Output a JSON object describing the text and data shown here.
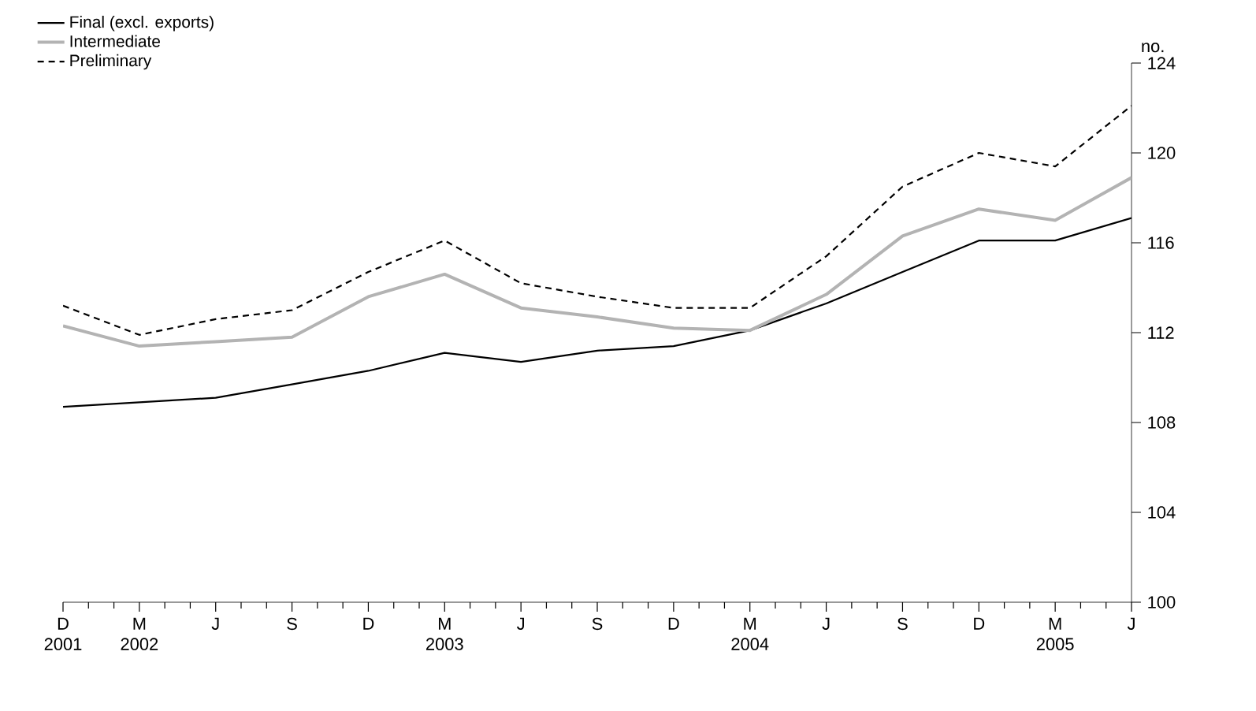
{
  "chart_data": {
    "type": "line",
    "ylabel": "no.",
    "categories": [
      "D 2001",
      "M 2002",
      "J",
      "S",
      "D",
      "M 2003",
      "J",
      "S",
      "D",
      "M 2004",
      "J",
      "S",
      "D",
      "M 2005",
      "J"
    ],
    "ylim": [
      100,
      124
    ],
    "yticks": [
      100,
      104,
      108,
      112,
      116,
      120,
      124
    ],
    "legend": "top left",
    "grid": false,
    "series": [
      {
        "name": "Final (excl. exports)",
        "color": "#000000",
        "line_style": "solid",
        "values": [
          108.7,
          108.9,
          109.1,
          109.7,
          110.3,
          111.1,
          110.7,
          111.2,
          111.4,
          112.1,
          113.3,
          114.7,
          116.1,
          116.1,
          117.1
        ]
      },
      {
        "name": "Intermediate",
        "color": "#b3b3b3",
        "line_style": "solid",
        "values": [
          112.3,
          111.4,
          111.6,
          111.8,
          113.6,
          114.6,
          113.1,
          112.7,
          112.2,
          112.1,
          113.7,
          116.3,
          117.5,
          117.0,
          118.9
        ]
      },
      {
        "name": "Preliminary",
        "color": "#000000",
        "line_style": "dashed",
        "values": [
          113.2,
          111.9,
          112.6,
          113.0,
          114.7,
          116.1,
          114.2,
          113.6,
          113.1,
          113.1,
          115.4,
          118.5,
          120.0,
          119.4,
          122.1
        ]
      }
    ]
  }
}
